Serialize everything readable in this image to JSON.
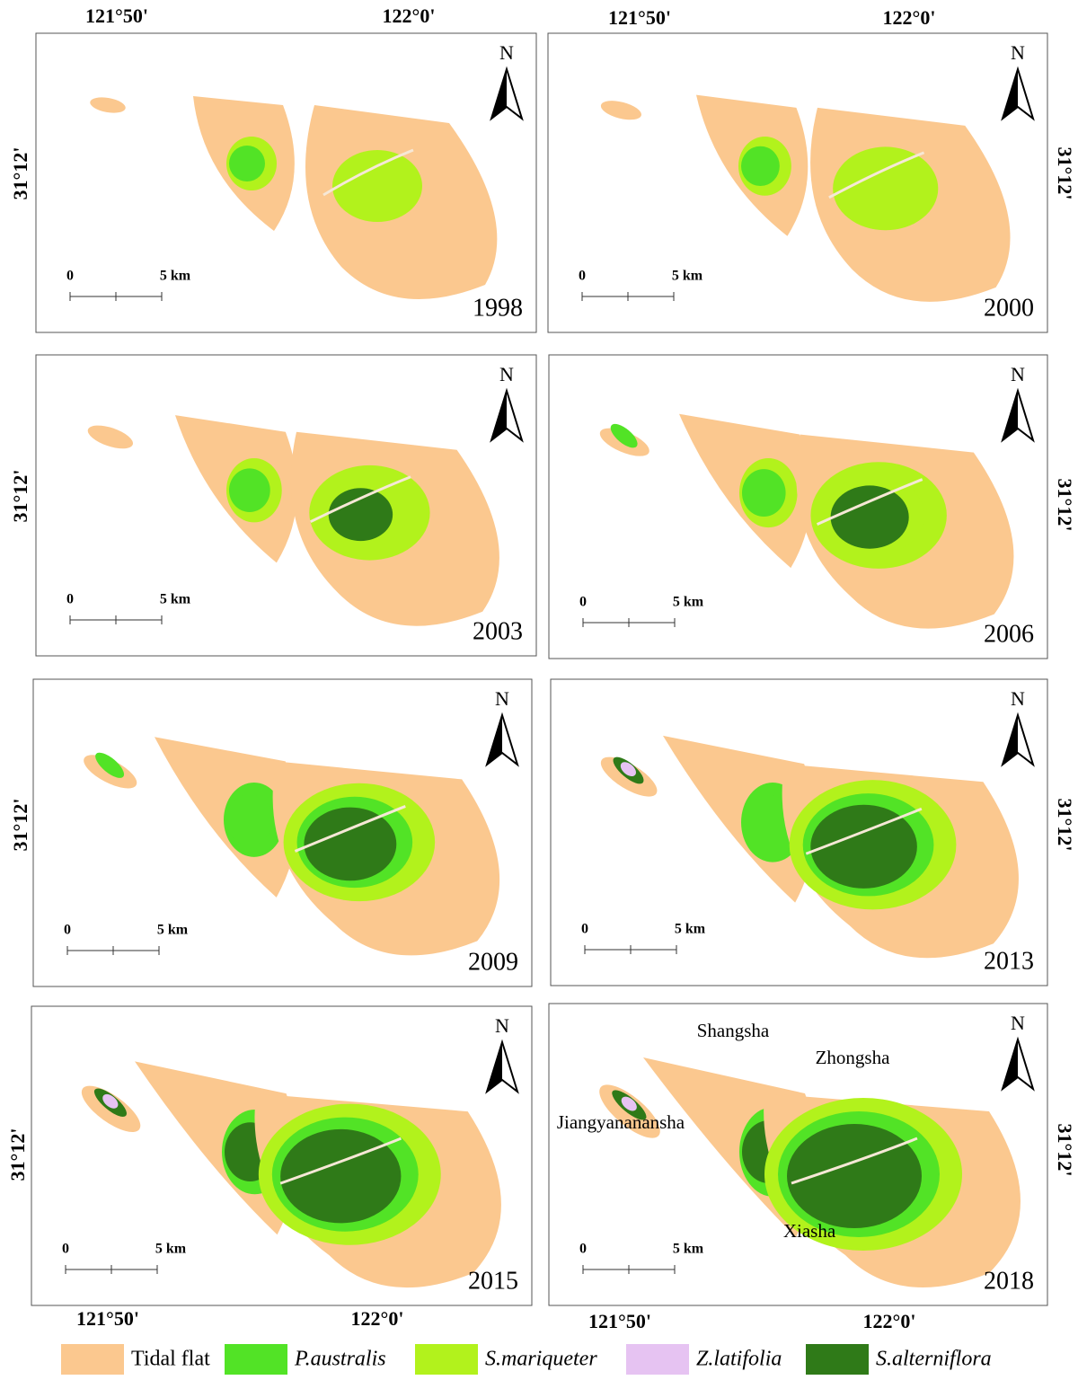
{
  "panels": [
    {
      "year": "1998",
      "north": "N",
      "scale_start": "0",
      "scale_end": "5 km"
    },
    {
      "year": "2000",
      "north": "N",
      "scale_start": "0",
      "scale_end": "5 km"
    },
    {
      "year": "2003",
      "north": "N",
      "scale_start": "0",
      "scale_end": "5 km"
    },
    {
      "year": "2006",
      "north": "N",
      "scale_start": "0",
      "scale_end": "5 km"
    },
    {
      "year": "2009",
      "north": "N",
      "scale_start": "0",
      "scale_end": "5 km"
    },
    {
      "year": "2013",
      "north": "N",
      "scale_start": "0",
      "scale_end": "5 km"
    },
    {
      "year": "2015",
      "north": "N",
      "scale_start": "0",
      "scale_end": "5 km"
    },
    {
      "year": "2018",
      "north": "N",
      "scale_start": "0",
      "scale_end": "5 km",
      "places": [
        "Shangsha",
        "Zhongsha",
        "Jiangyananansha",
        "Xiasha"
      ]
    }
  ],
  "axis_labels": {
    "top": [
      "121°50'",
      "122°0'",
      "121°50'",
      "122°0'"
    ],
    "bottom": [
      "121°50'",
      "122°0'",
      "121°50'",
      "122°0'"
    ],
    "left": [
      "31°12'",
      "31°12'",
      "31°12'",
      "31°12'"
    ],
    "right": [
      "31°12'",
      "31°12'",
      "31°12'",
      "31°12'"
    ]
  },
  "legend": [
    {
      "label": "Tidal flat",
      "color": "#fbc88f",
      "italic": false
    },
    {
      "label": "P.australis",
      "color": "#52e326",
      "italic": true
    },
    {
      "label": "S.mariqueter",
      "color": "#b2f21c",
      "italic": true
    },
    {
      "label": "Z.latifolia",
      "color": "#e6c3f2",
      "italic": true
    },
    {
      "label": "S.alterniflora",
      "color": "#2f7a18",
      "italic": true
    }
  ]
}
